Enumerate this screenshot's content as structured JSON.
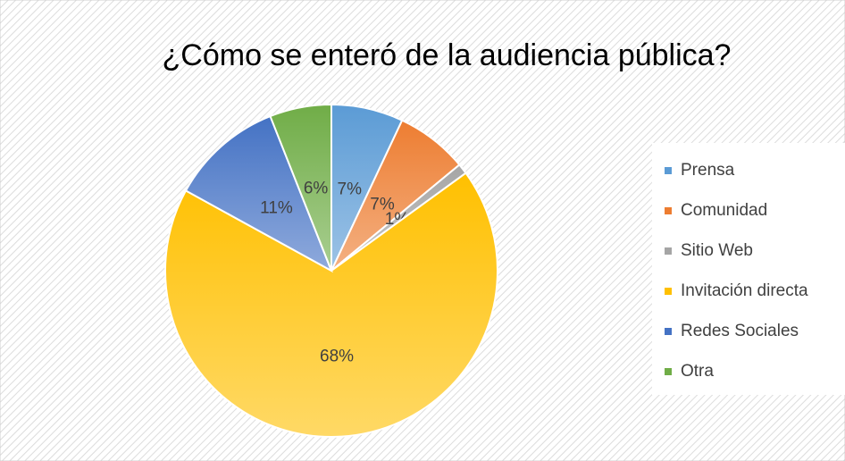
{
  "chart_data": {
    "type": "pie",
    "title": "¿Cómo se enteró de la audiencia pública?",
    "categories": [
      "Prensa",
      "Comunidad",
      "Sitio Web",
      "Invitación directa",
      "Redes Sociales",
      "Otra"
    ],
    "values": [
      7,
      7,
      1,
      68,
      11,
      6
    ],
    "value_labels": [
      "7%",
      "7%",
      "1%",
      "68%",
      "11%",
      "6%"
    ],
    "colors": [
      "#5b9bd5",
      "#ed7d31",
      "#a5a5a5",
      "#ffc000",
      "#4472c4",
      "#70ad47"
    ],
    "legend": "right"
  }
}
